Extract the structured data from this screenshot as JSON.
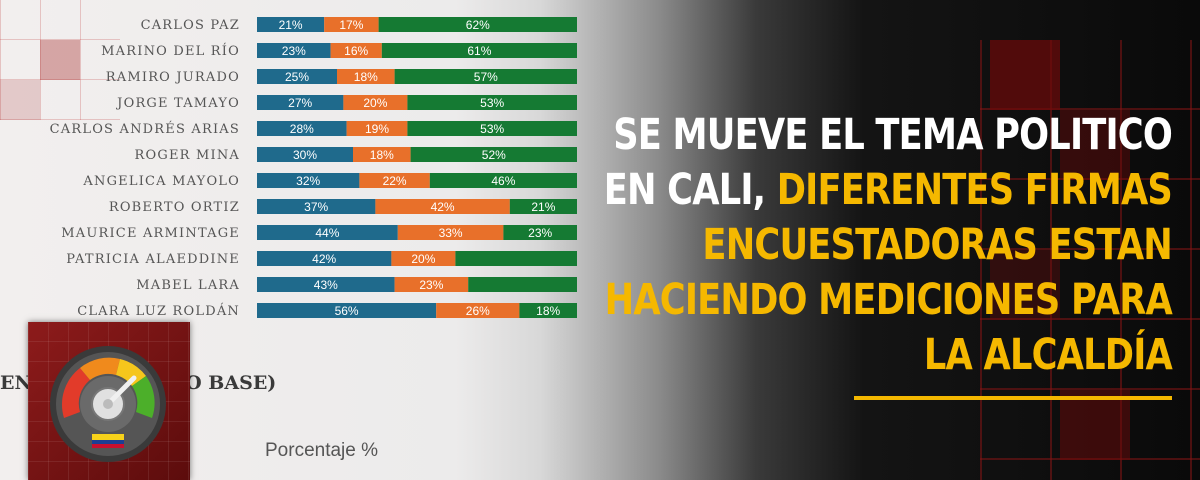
{
  "chart_data": {
    "type": "bar",
    "stacked": true,
    "orientation": "horizontal",
    "categories": [
      "CARLOS PAZ",
      "MARINO DEL RÍO",
      "RAMIRO JURADO",
      "JORGE TAMAYO",
      "CARLOS ANDRÉS ARIAS",
      "ROGER MINA",
      "ANGELICA MAYOLO",
      "ROBERTO ORTIZ",
      "MAURICE ARMINTAGE",
      "PATRICIA ALAEDDINE",
      "MABEL LARA",
      "CLARA LUZ ROLDÁN"
    ],
    "series": [
      {
        "values": [
          21,
          23,
          25,
          27,
          28,
          30,
          32,
          37,
          44,
          42,
          43,
          56
        ]
      },
      {
        "values": [
          17,
          16,
          18,
          20,
          19,
          18,
          22,
          42,
          33,
          20,
          23,
          26
        ]
      },
      {
        "values": [
          62,
          61,
          57,
          53,
          53,
          52,
          46,
          21,
          23,
          38,
          34,
          18
        ]
      }
    ],
    "value_labels": [
      [
        "21%",
        "17%",
        "62%"
      ],
      [
        "23%",
        "16%",
        "61%"
      ],
      [
        "25%",
        "18%",
        "57%"
      ],
      [
        "27%",
        "20%",
        "53%"
      ],
      [
        "28%",
        "19%",
        "53%"
      ],
      [
        "30%",
        "18%",
        "52%"
      ],
      [
        "32%",
        "22%",
        "46%"
      ],
      [
        "37%",
        "42%",
        "21%"
      ],
      [
        "44%",
        "33%",
        "23%"
      ],
      [
        "42%",
        "20%",
        ""
      ],
      [
        "43%",
        "23%",
        ""
      ],
      [
        "56%",
        "26%",
        "18%"
      ]
    ],
    "colors": [
      "#1f6a8c",
      "#e8702a",
      "#157a33"
    ],
    "xlim": [
      0,
      100
    ],
    "subtitle": "EN          D (ESCENARIO BASE)",
    "axis_caption": "Porcentaje %"
  },
  "headline": {
    "white_part": "SE MUEVE EL TEMA POLITICO EN CALI,",
    "yellow_part": "DIFERENTES FIRMAS ENCUESTADORAS ESTAN HACIENDO MEDICIONES PARA LA ALCALDÍA"
  },
  "icon": "speedometer-gauge-icon",
  "accent_color": "#f5b800"
}
